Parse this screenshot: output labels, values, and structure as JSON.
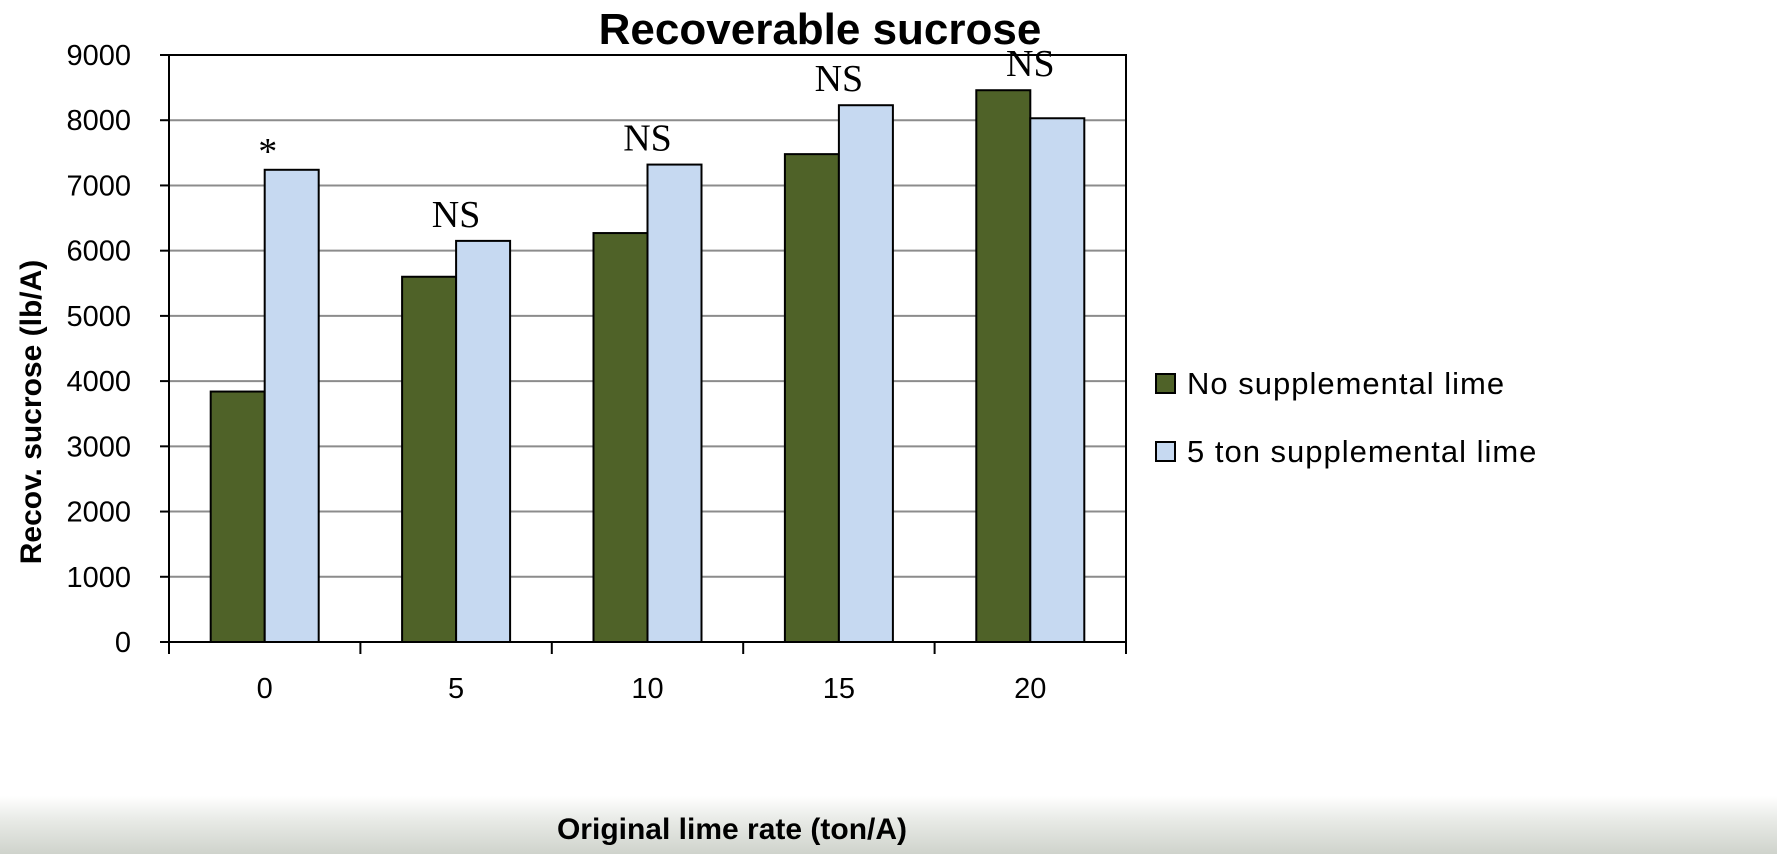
{
  "chart_data": {
    "type": "bar",
    "title": "Recoverable sucrose",
    "xlabel": "Original lime rate (ton/A)",
    "ylabel": "Recov. sucrose (lb/A)",
    "categories": [
      "0",
      "5",
      "10",
      "15",
      "20"
    ],
    "series": [
      {
        "name": "No supplemental lime",
        "values": [
          3840,
          5600,
          6270,
          7480,
          8460
        ],
        "color": "#4f6228"
      },
      {
        "name": "5 ton supplemental lime",
        "values": [
          7240,
          6150,
          7320,
          8230,
          8030
        ],
        "color": "#c6d9f1"
      }
    ],
    "annotations": [
      "*",
      "NS",
      "NS",
      "NS",
      "NS"
    ],
    "ylim": [
      0,
      9000
    ],
    "yticks": [
      0,
      1000,
      2000,
      3000,
      4000,
      5000,
      6000,
      7000,
      8000,
      9000
    ],
    "grid": true,
    "legend_position": "right"
  }
}
